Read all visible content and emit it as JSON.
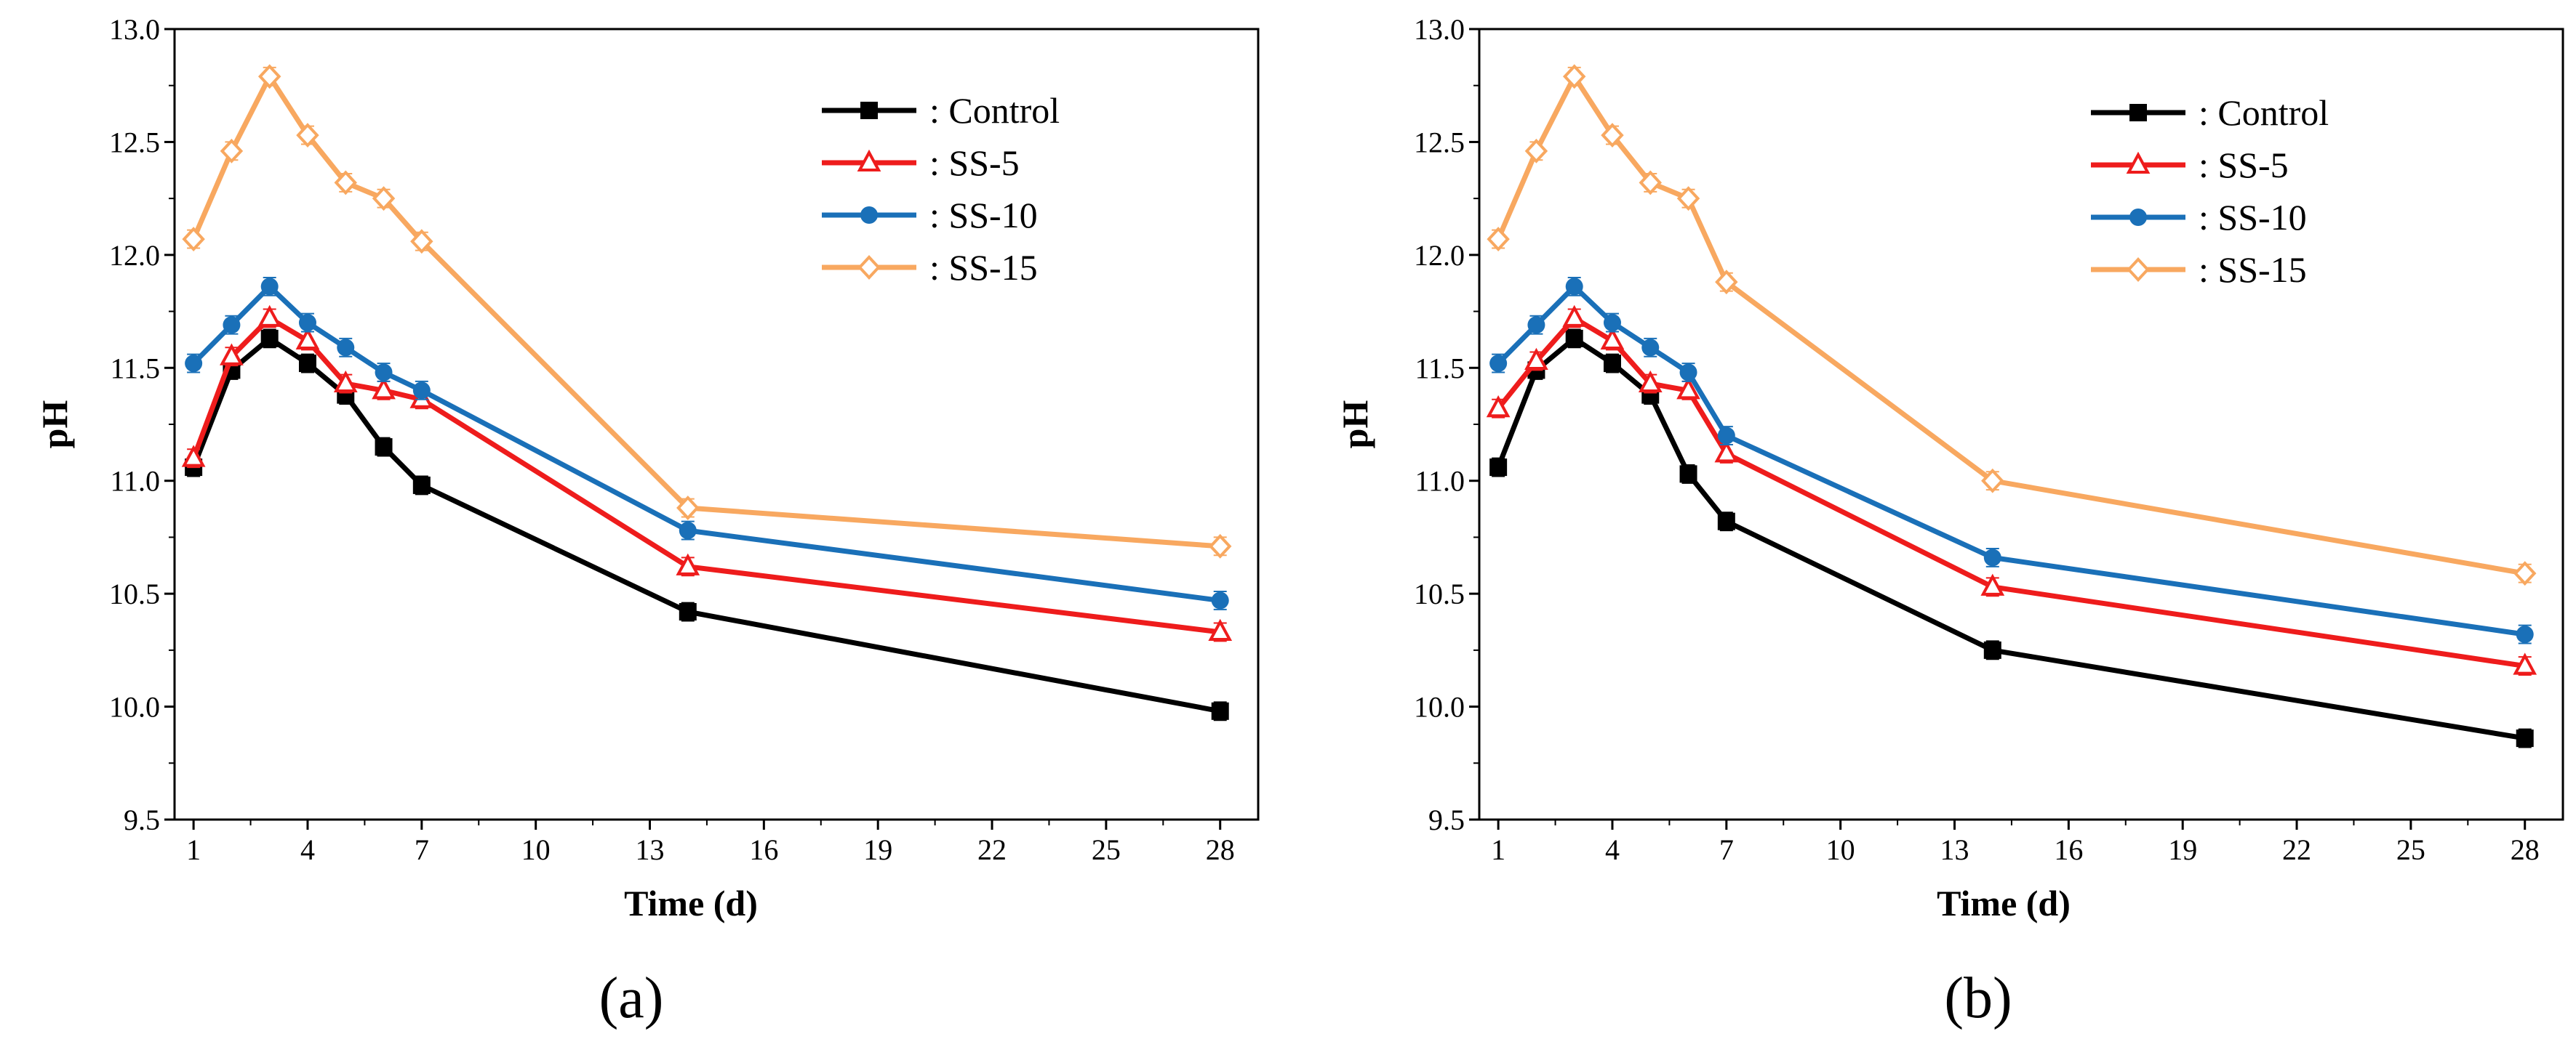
{
  "figure": {
    "panels": [
      "(a)",
      "(b)"
    ]
  },
  "colors": {
    "Control": "#000000",
    "SS-5": "#ee1c1c",
    "SS-10": "#1a70b8",
    "SS-15": "#f8a860"
  },
  "chart_data": [
    {
      "type": "line",
      "panel_label": "(a)",
      "title": "",
      "xlabel": "Time (d)",
      "ylabel": "pH",
      "xlim": [
        0.5,
        29
      ],
      "ylim": [
        9.5,
        13.0
      ],
      "xticks": [
        1,
        4,
        7,
        10,
        13,
        16,
        19,
        22,
        25,
        28
      ],
      "yticks": [
        9.5,
        10.0,
        10.5,
        11.0,
        11.5,
        12.0,
        12.5,
        13.0
      ],
      "ytick_labels": [
        "9.5",
        "10.0",
        "10.5",
        "11.0",
        "11.5",
        "12.0",
        "12.5",
        "13.0"
      ],
      "legend_position": "top-right",
      "x": [
        1,
        2,
        3,
        4,
        5,
        6,
        7,
        14,
        28
      ],
      "series": [
        {
          "name": "Control",
          "label": ": Control",
          "marker": "square",
          "values": [
            11.06,
            11.49,
            11.63,
            11.52,
            11.38,
            11.15,
            10.98,
            10.42,
            9.98
          ]
        },
        {
          "name": "SS-5",
          "label": ": SS-5",
          "marker": "triangle",
          "values": [
            11.1,
            11.55,
            11.72,
            11.62,
            11.43,
            11.4,
            11.36,
            10.62,
            10.33
          ]
        },
        {
          "name": "SS-10",
          "label": ": SS-10",
          "marker": "circle",
          "values": [
            11.52,
            11.69,
            11.86,
            11.7,
            11.59,
            11.48,
            11.4,
            10.78,
            10.47
          ]
        },
        {
          "name": "SS-15",
          "label": ": SS-15",
          "marker": "diamond",
          "values": [
            12.07,
            12.46,
            12.79,
            12.53,
            12.32,
            12.25,
            12.06,
            10.88,
            10.71
          ]
        }
      ]
    },
    {
      "type": "line",
      "panel_label": "(b)",
      "title": "",
      "xlabel": "Time (d)",
      "ylabel": "pH",
      "xlim": [
        0.5,
        29
      ],
      "ylim": [
        9.5,
        13.0
      ],
      "xticks": [
        1,
        4,
        7,
        10,
        13,
        16,
        19,
        22,
        25,
        28
      ],
      "yticks": [
        9.5,
        10.0,
        10.5,
        11.0,
        11.5,
        12.0,
        12.5,
        13.0
      ],
      "ytick_labels": [
        "9.5",
        "10.0",
        "10.5",
        "11.0",
        "11.5",
        "12.0",
        "12.5",
        "13.0"
      ],
      "legend_position": "top-right",
      "x": [
        1,
        2,
        3,
        4,
        5,
        6,
        7,
        14,
        28
      ],
      "series": [
        {
          "name": "Control",
          "label": ": Control",
          "marker": "square",
          "values": [
            11.06,
            11.49,
            11.63,
            11.52,
            11.38,
            11.03,
            10.82,
            10.25,
            9.86
          ]
        },
        {
          "name": "SS-5",
          "label": ": SS-5",
          "marker": "triangle",
          "values": [
            11.32,
            11.53,
            11.72,
            11.62,
            11.43,
            11.4,
            11.12,
            10.53,
            10.18
          ]
        },
        {
          "name": "SS-10",
          "label": ": SS-10",
          "marker": "circle",
          "values": [
            11.52,
            11.69,
            11.86,
            11.7,
            11.59,
            11.48,
            11.2,
            10.66,
            10.32
          ]
        },
        {
          "name": "SS-15",
          "label": ": SS-15",
          "marker": "diamond",
          "values": [
            12.07,
            12.46,
            12.79,
            12.53,
            12.32,
            12.25,
            11.88,
            11.0,
            10.59
          ]
        }
      ]
    }
  ]
}
